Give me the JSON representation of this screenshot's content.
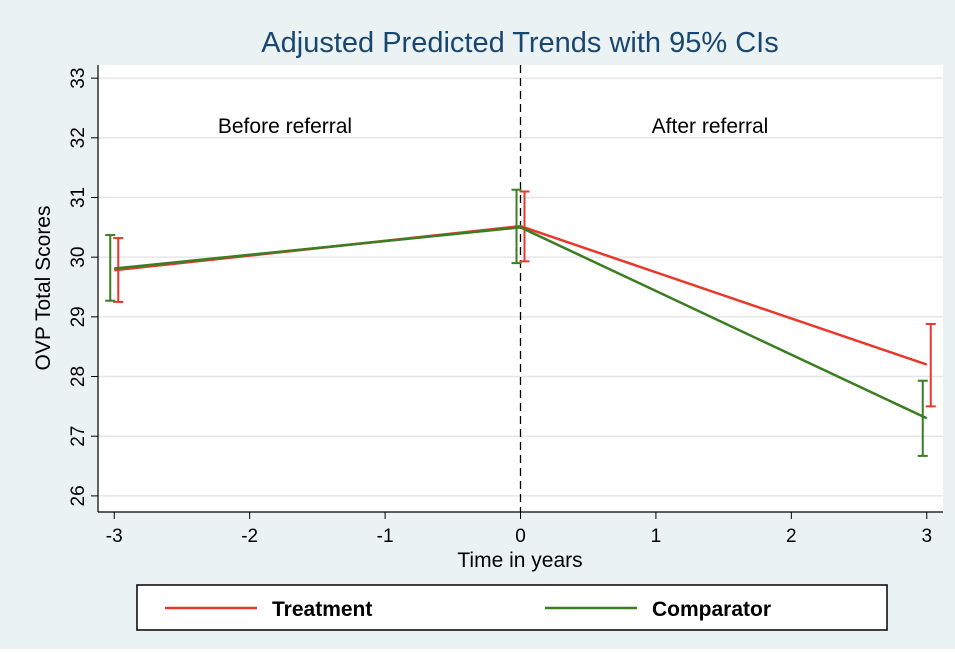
{
  "chart_data": {
    "type": "line",
    "title": "Adjusted Predicted Trends with 95% CIs",
    "x_label": "Time in years",
    "y_label": "OVP Total Scores",
    "annotations": [
      "Before referral",
      "After referral"
    ],
    "x": [
      -3,
      0,
      3
    ],
    "series": [
      {
        "name": "Treatment",
        "color": "#e8382c",
        "values": [
          29.78,
          30.52,
          28.2
        ],
        "lower": [
          29.25,
          29.93,
          27.5
        ],
        "upper": [
          30.32,
          31.1,
          28.88
        ]
      },
      {
        "name": "Comparator",
        "color": "#3a7d23",
        "values": [
          29.81,
          30.5,
          27.3
        ],
        "lower": [
          29.27,
          29.9,
          26.67
        ],
        "upper": [
          30.37,
          31.13,
          27.93
        ]
      }
    ],
    "xline": 0,
    "xlim": [
      -3.12,
      3.12
    ],
    "xticks": [
      -3,
      -2,
      -1,
      0,
      1,
      2,
      3
    ],
    "ylim": [
      25.73,
      33.22
    ],
    "yticks": [
      26,
      27,
      28,
      29,
      30,
      31,
      32,
      33
    ],
    "grid": true,
    "legend": "bottom"
  }
}
